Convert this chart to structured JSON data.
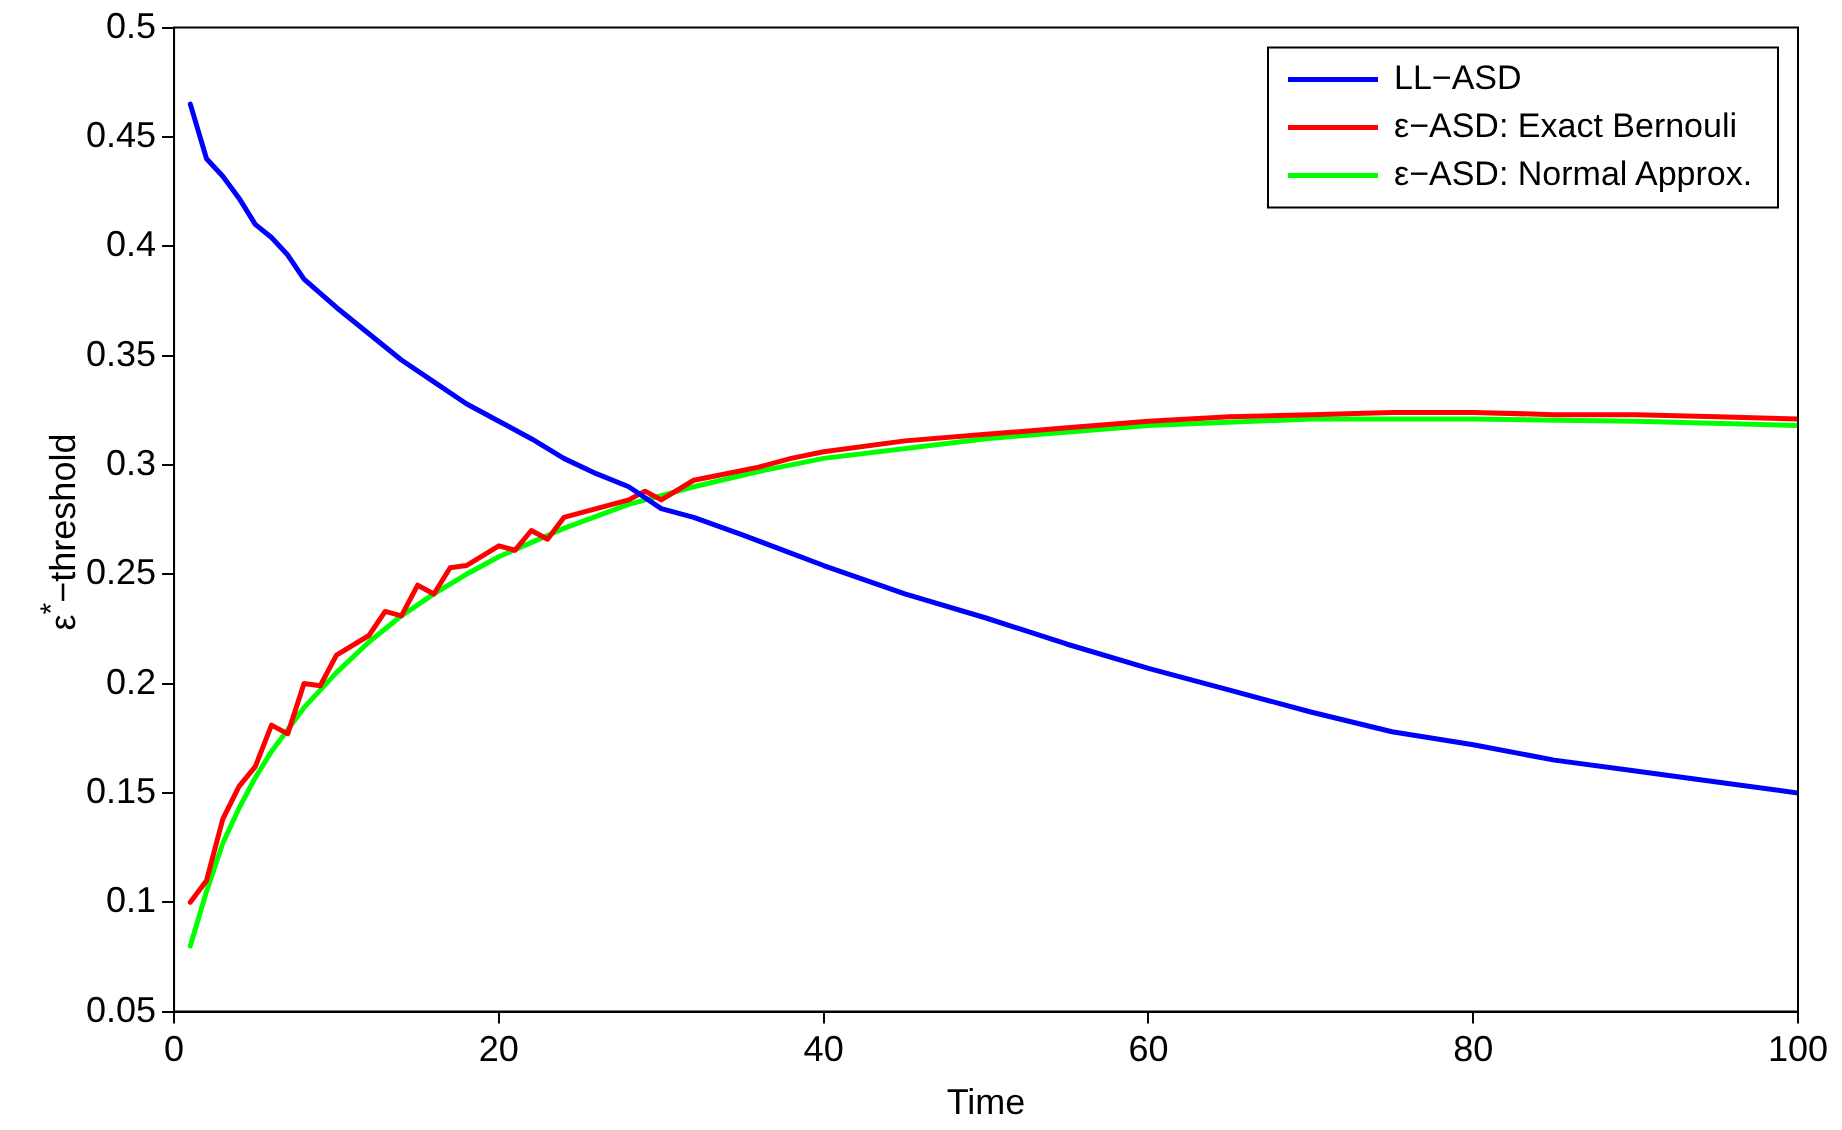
{
  "chart_data": {
    "type": "line",
    "xlabel": "Time",
    "ylabel": "ε$^{*}$−threshold",
    "xlim": [
      0,
      100
    ],
    "xticks": [
      0,
      20,
      40,
      60,
      80,
      100
    ],
    "ylim": [
      0.05,
      0.5
    ],
    "yticks": [
      0.05,
      0.1,
      0.15,
      0.2,
      0.25,
      0.3,
      0.35,
      0.4,
      0.45,
      0.5
    ],
    "grid": false,
    "legend": "top right",
    "marker": "none",
    "line_style": "solid",
    "series": [
      {
        "name": "LL−ASD",
        "color": "#0000ff",
        "x": [
          1,
          2,
          3,
          4,
          5,
          6,
          7,
          8,
          10,
          12,
          14,
          16,
          18,
          20,
          22,
          24,
          26,
          28,
          30,
          32,
          35,
          40,
          45,
          50,
          55,
          60,
          65,
          70,
          75,
          80,
          85,
          90,
          95,
          100
        ],
        "values": [
          0.465,
          0.44,
          0.432,
          0.422,
          0.41,
          0.404,
          0.396,
          0.385,
          0.372,
          0.36,
          0.348,
          0.338,
          0.328,
          0.32,
          0.312,
          0.303,
          0.296,
          0.29,
          0.28,
          0.276,
          0.268,
          0.254,
          0.241,
          0.23,
          0.218,
          0.207,
          0.197,
          0.187,
          0.178,
          0.172,
          0.165,
          0.16,
          0.155,
          0.15
        ]
      },
      {
        "name": "ε−ASD: Exact Bernouli",
        "color": "#ff0000",
        "x": [
          1,
          2,
          3,
          4,
          5,
          6,
          7,
          8,
          9,
          10,
          12,
          13,
          14,
          15,
          16,
          17,
          18,
          20,
          21,
          22,
          23,
          24,
          26,
          28,
          29,
          30,
          32,
          34,
          36,
          38,
          40,
          45,
          50,
          55,
          60,
          65,
          70,
          75,
          80,
          85,
          90,
          95,
          100
        ],
        "values": [
          0.1,
          0.11,
          0.138,
          0.153,
          0.162,
          0.181,
          0.177,
          0.2,
          0.199,
          0.213,
          0.222,
          0.233,
          0.231,
          0.245,
          0.241,
          0.253,
          0.254,
          0.263,
          0.261,
          0.27,
          0.266,
          0.276,
          0.28,
          0.284,
          0.288,
          0.284,
          0.293,
          0.296,
          0.299,
          0.303,
          0.306,
          0.311,
          0.314,
          0.317,
          0.32,
          0.322,
          0.323,
          0.324,
          0.324,
          0.323,
          0.323,
          0.322,
          0.321
        ]
      },
      {
        "name": "ε−ASD: Normal Approx.",
        "color": "#00ff00",
        "x": [
          1,
          2,
          3,
          4,
          5,
          6,
          8,
          10,
          12,
          14,
          16,
          18,
          20,
          24,
          28,
          32,
          36,
          40,
          50,
          60,
          70,
          80,
          90,
          100
        ],
        "values": [
          0.08,
          0.105,
          0.127,
          0.143,
          0.157,
          0.169,
          0.189,
          0.205,
          0.219,
          0.231,
          0.241,
          0.25,
          0.258,
          0.271,
          0.282,
          0.29,
          0.297,
          0.303,
          0.312,
          0.318,
          0.321,
          0.321,
          0.32,
          0.318
        ]
      }
    ]
  }
}
